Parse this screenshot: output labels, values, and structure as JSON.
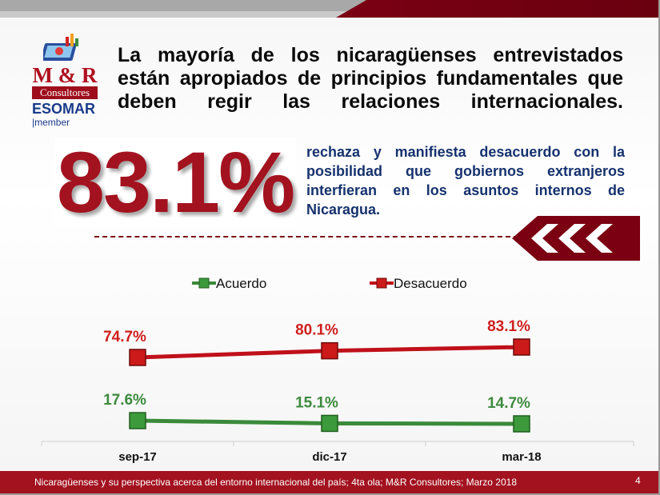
{
  "logo": {
    "brand": "M & R",
    "sub": "Consultores",
    "org": "ESOMAR",
    "member": "|member"
  },
  "headline": "La mayoría de los nicaragüenses entrevistados están apropiados de principios fundamentales que deben regir las relaciones internacionales.",
  "highlight": {
    "value": "83.1%",
    "text": "rechaza y manifiesta desacuerdo con la posibilidad que gobiernos extranjeros interfieran en los asuntos internos de Nicaragua."
  },
  "colors": {
    "accent_red": "#a3121f",
    "desacuerdo": "#c0101a",
    "acuerdo": "#3a8a3a",
    "label_red": "#d01e1e",
    "label_green": "#3d8a3d"
  },
  "chart_data": {
    "type": "line",
    "categories": [
      "sep-17",
      "dic-17",
      "mar-18"
    ],
    "series": [
      {
        "name": "Acuerdo",
        "values": [
          17.6,
          15.1,
          14.7
        ],
        "labels": [
          "17.6%",
          "15.1%",
          "14.7%"
        ]
      },
      {
        "name": "Desacuerdo",
        "values": [
          74.7,
          80.1,
          83.1
        ],
        "labels": [
          "74.7%",
          "80.1%",
          "83.1%"
        ]
      }
    ],
    "legend": "top",
    "grid": false
  },
  "footer": {
    "source": "Nicaragüenses y su perspectiva acerca del entorno internacional del país; 4ta ola; M&R Consultores; Marzo 2018",
    "page": "4"
  }
}
